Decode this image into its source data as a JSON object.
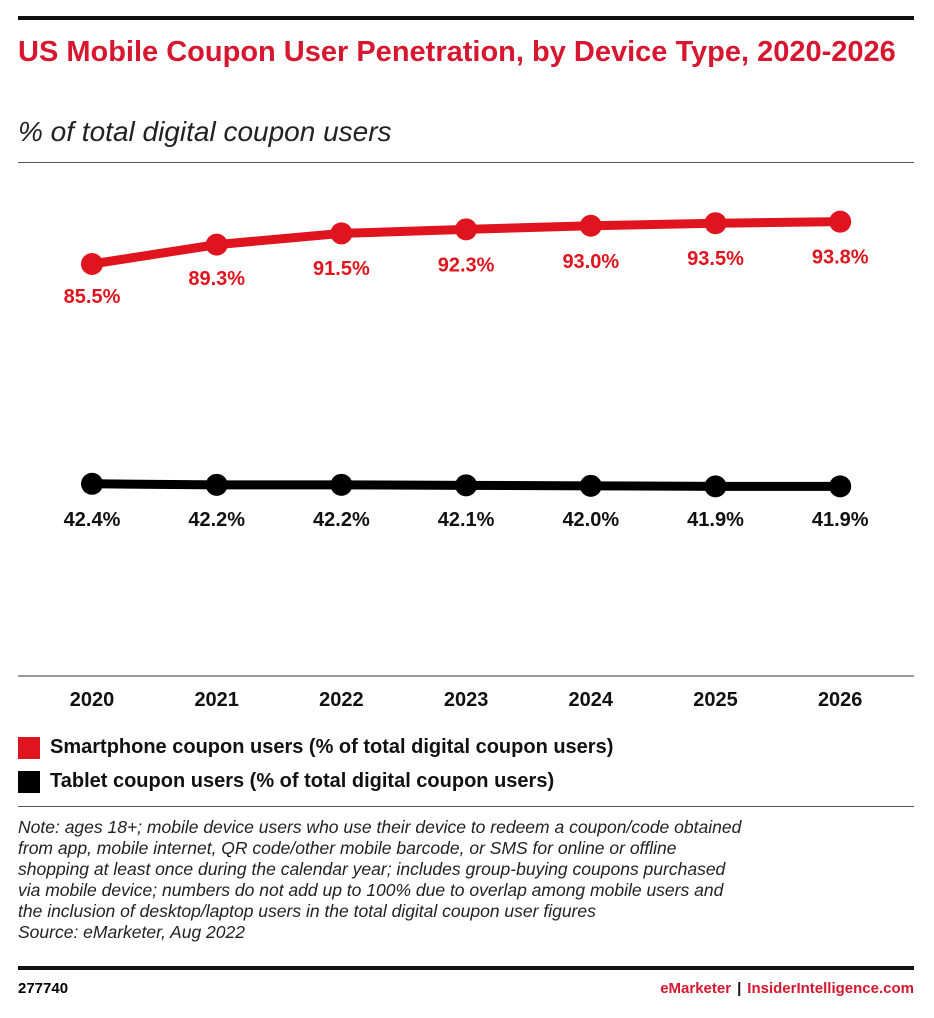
{
  "chart_data": {
    "type": "line",
    "title": "US Mobile Coupon User Penetration, by Device Type, 2020-2026",
    "subtitle": "% of total digital coupon users",
    "categories": [
      "2020",
      "2021",
      "2022",
      "2023",
      "2024",
      "2025",
      "2026"
    ],
    "series": [
      {
        "name": "Smartphone coupon users (% of total digital coupon users)",
        "color": "#e0141e",
        "values": [
          85.5,
          89.3,
          91.5,
          92.3,
          93.0,
          93.5,
          93.8
        ],
        "labels": [
          "85.5%",
          "89.3%",
          "91.5%",
          "92.3%",
          "93.0%",
          "93.5%",
          "93.8%"
        ]
      },
      {
        "name": "Tablet coupon users (% of total digital coupon users)",
        "color": "#000000",
        "values": [
          42.4,
          42.2,
          42.2,
          42.1,
          42.0,
          41.9,
          41.9
        ],
        "labels": [
          "42.4%",
          "42.2%",
          "42.2%",
          "42.1%",
          "42.0%",
          "41.9%",
          "41.9%"
        ]
      }
    ],
    "grid": false,
    "legend": "bottom-left"
  },
  "note": "Note: ages 18+; mobile device users who use their device to redeem a coupon/code obtained\nfrom app, mobile internet, QR code/other mobile barcode, or SMS for online or offline\nshopping at least once during the calendar year; includes group-buying coupons purchased\nvia mobile device; numbers do not add up to 100% due to overlap among mobile users and\nthe inclusion of desktop/laptop users in the total digital coupon user figures\nSource: eMarketer, Aug 2022",
  "footer": {
    "id": "277740",
    "brand1": "eMarketer",
    "separator": "|",
    "brand2": "InsiderIntelligence.com"
  }
}
